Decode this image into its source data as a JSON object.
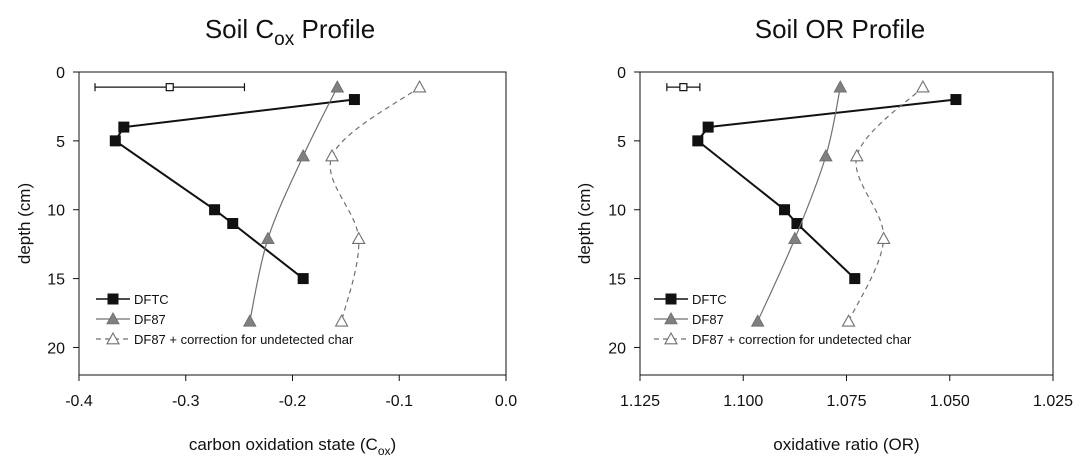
{
  "chart_data": [
    {
      "type": "line",
      "title": "Soil C<sub>ox</sub> Profile",
      "title_main": "Soil C",
      "title_sub": "ox",
      "title_tail": " Profile",
      "xlabel": "carbon oxidation state (C",
      "xlabel_sub": "ox",
      "xlabel_tail": ")",
      "ylabel": "depth (cm)",
      "xlim": [
        -0.4,
        0.0
      ],
      "ylim": [
        0,
        22
      ],
      "x_ticks": [
        -0.4,
        -0.3,
        -0.2,
        -0.1,
        0.0
      ],
      "x_tick_labels": [
        "-0.4",
        "-0.3",
        "-0.2",
        "-0.1",
        "0.0"
      ],
      "y_ticks": [
        0,
        5,
        10,
        15,
        20
      ],
      "y_tick_labels": [
        "0",
        "5",
        "10",
        "15",
        "20"
      ],
      "y_inverted": true,
      "error_bar": {
        "x": -0.315,
        "y": 1.1,
        "xerr_low": -0.385,
        "xerr_high": -0.245
      },
      "legend_position": "bottom-left",
      "series": [
        {
          "name": "DFTC",
          "style": "solid-square",
          "color": "#111111",
          "points": [
            [
              -0.142,
              2
            ],
            [
              -0.358,
              4
            ],
            [
              -0.366,
              5
            ],
            [
              -0.273,
              10
            ],
            [
              -0.256,
              11
            ],
            [
              -0.19,
              15
            ]
          ]
        },
        {
          "name": "DF87",
          "style": "solid-triangle",
          "color": "#808080",
          "points": [
            [
              -0.158,
              1.1
            ],
            [
              -0.19,
              6.1
            ],
            [
              -0.223,
              12.1
            ],
            [
              -0.24,
              18.1
            ]
          ]
        },
        {
          "name": "DF87 + correction for undetected char",
          "style": "dashed-open-triangle",
          "color": "#808080",
          "points": [
            [
              -0.081,
              1.1
            ],
            [
              -0.163,
              6.1
            ],
            [
              -0.138,
              12.1
            ],
            [
              -0.154,
              18.1
            ]
          ]
        }
      ]
    },
    {
      "type": "line",
      "title": "Soil OR Profile",
      "xlabel": "oxidative ratio (OR)",
      "ylabel": "depth (cm)",
      "xlim": [
        1.125,
        1.025
      ],
      "ylim": [
        0,
        22
      ],
      "x_ticks": [
        1.125,
        1.1,
        1.075,
        1.05,
        1.025
      ],
      "x_tick_labels": [
        "1.125",
        "1.100",
        "1.075",
        "1.050",
        "1.025"
      ],
      "y_ticks": [
        0,
        5,
        10,
        15,
        20
      ],
      "y_tick_labels": [
        "0",
        "5",
        "10",
        "15",
        "20"
      ],
      "y_inverted": true,
      "error_bar": {
        "x": 1.1145,
        "y": 1.1,
        "xerr_low": 1.1185,
        "xerr_high": 1.1105
      },
      "legend_position": "bottom-left",
      "series": [
        {
          "name": "DFTC",
          "style": "solid-square",
          "color": "#111111",
          "points": [
            [
              1.0485,
              2
            ],
            [
              1.1085,
              4
            ],
            [
              1.111,
              5
            ],
            [
              1.09,
              10
            ],
            [
              1.087,
              11
            ],
            [
              1.073,
              15
            ]
          ]
        },
        {
          "name": "DF87",
          "style": "solid-triangle",
          "color": "#808080",
          "points": [
            [
              1.0765,
              1.1
            ],
            [
              1.08,
              6.1
            ],
            [
              1.0875,
              12.1
            ],
            [
              1.0965,
              18.1
            ]
          ]
        },
        {
          "name": "DF87 + correction for undetected char",
          "style": "dashed-open-triangle",
          "color": "#808080",
          "points": [
            [
              1.0565,
              1.1
            ],
            [
              1.0725,
              6.1
            ],
            [
              1.066,
              12.1
            ],
            [
              1.0745,
              18.1
            ]
          ]
        }
      ]
    }
  ]
}
